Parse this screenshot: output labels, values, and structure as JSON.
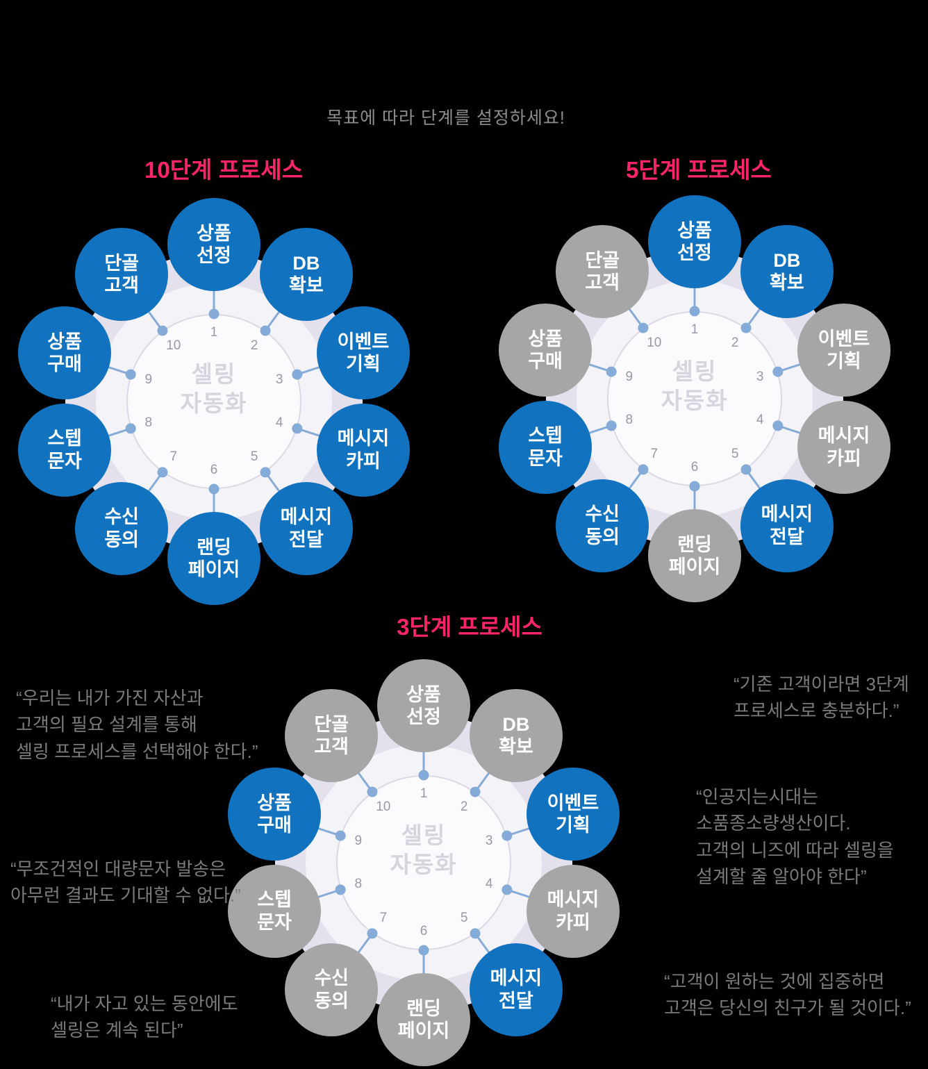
{
  "page": {
    "background": "#000000"
  },
  "subtitle": "목표에 따라 단계를 설정하세요!",
  "colors": {
    "active_blue": "#1173c0",
    "inactive_gray": "#a7a6a6",
    "title_pink": "#fb2568",
    "connector_blue": "#85abd8",
    "number_gray": "#9a98a2",
    "center_label_gray": "#d6d4dd",
    "quote_gray": "#7b7b7b",
    "subtitle_gray": "#8d8d8d"
  },
  "diagrams": [
    {
      "id": "10step",
      "title": "10단계 프로세스",
      "center_label": "셀링\n자동화",
      "steps": [
        {
          "num": "1",
          "label": "상품\n선정",
          "active": true
        },
        {
          "num": "2",
          "label": "DB\n확보",
          "active": true
        },
        {
          "num": "3",
          "label": "이벤트\n기획",
          "active": true
        },
        {
          "num": "4",
          "label": "메시지\n카피",
          "active": true
        },
        {
          "num": "5",
          "label": "메시지\n전달",
          "active": true
        },
        {
          "num": "6",
          "label": "랜딩\n페이지",
          "active": true
        },
        {
          "num": "7",
          "label": "수신\n동의",
          "active": true
        },
        {
          "num": "8",
          "label": "스텝\n문자",
          "active": true
        },
        {
          "num": "9",
          "label": "상품\n구매",
          "active": true
        },
        {
          "num": "10",
          "label": "단골\n고객",
          "active": true
        }
      ]
    },
    {
      "id": "5step",
      "title": "5단계 프로세스",
      "center_label": "셀링\n자동화",
      "steps": [
        {
          "num": "1",
          "label": "상품\n선정",
          "active": true
        },
        {
          "num": "2",
          "label": "DB\n확보",
          "active": true
        },
        {
          "num": "3",
          "label": "이벤트\n기획",
          "active": false
        },
        {
          "num": "4",
          "label": "메시지\n카피",
          "active": false
        },
        {
          "num": "5",
          "label": "메시지\n전달",
          "active": true
        },
        {
          "num": "6",
          "label": "랜딩\n페이지",
          "active": false
        },
        {
          "num": "7",
          "label": "수신\n동의",
          "active": true
        },
        {
          "num": "8",
          "label": "스텝\n문자",
          "active": true
        },
        {
          "num": "9",
          "label": "상품\n구매",
          "active": false
        },
        {
          "num": "10",
          "label": "단골\n고객",
          "active": false
        }
      ]
    },
    {
      "id": "3step",
      "title": "3단계 프로세스",
      "center_label": "셀링\n자동화",
      "steps": [
        {
          "num": "1",
          "label": "상품\n선정",
          "active": false
        },
        {
          "num": "2",
          "label": "DB\n확보",
          "active": false
        },
        {
          "num": "3",
          "label": "이벤트\n기획",
          "active": true
        },
        {
          "num": "4",
          "label": "메시지\n카피",
          "active": false
        },
        {
          "num": "5",
          "label": "메시지\n전달",
          "active": true
        },
        {
          "num": "6",
          "label": "랜딩\n페이지",
          "active": false
        },
        {
          "num": "7",
          "label": "수신\n동의",
          "active": false
        },
        {
          "num": "8",
          "label": "스텝\n문자",
          "active": false
        },
        {
          "num": "9",
          "label": "상품\n구매",
          "active": true
        },
        {
          "num": "10",
          "label": "단골\n고객",
          "active": false
        }
      ]
    }
  ],
  "quotes": [
    {
      "text": "“우리는 내가 가진 자산과\n고객의 필요 설계를 통해\n셀링 프로세스를 선택해야 한다.”"
    },
    {
      "text": "“무조건적인 대량문자 발송은\n아무런 결과도 기대할 수 없다.”"
    },
    {
      "text": "“내가 자고 있는 동안에도\n셀링은 계속 된다”"
    },
    {
      "text": "“기존 고객이라면 3단계\n프로세스로 충분하다.”"
    },
    {
      "text": "“인공지는시대는\n소품종소량생산이다.\n고객의 니즈에 따라 셀링을\n설계할 줄 알아야 한다”"
    },
    {
      "text": "“고객이 원하는 것에 집중하면\n고객은 당신의 친구가 될 것이다.”"
    }
  ]
}
